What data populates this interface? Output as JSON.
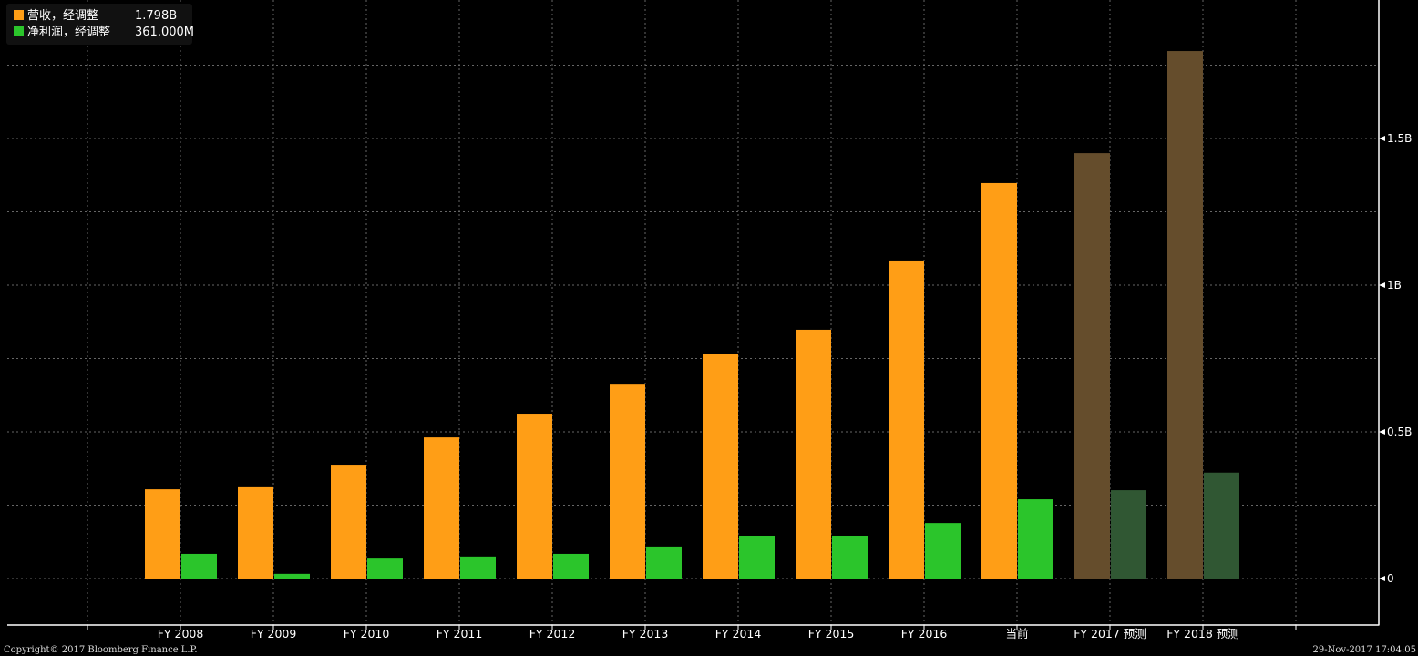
{
  "chart_data": {
    "type": "bar",
    "title": "",
    "xlabel": "",
    "ylabel": "",
    "ylim": [
      -0.16,
      1.97
    ],
    "y_ticks": [
      {
        "value": 0,
        "label": "0"
      },
      {
        "value": 0.5,
        "label": "0.5B"
      },
      {
        "value": 1,
        "label": "1B"
      },
      {
        "value": 1.5,
        "label": "1.5B"
      }
    ],
    "grid": true,
    "legend_position": "top-left",
    "categories": [
      "FY 2008",
      "FY 2009",
      "FY 2010",
      "FY 2011",
      "FY 2012",
      "FY 2013",
      "FY 2014",
      "FY 2015",
      "FY 2016",
      "当前",
      "FY 2017 预测",
      "FY 2018 预测"
    ],
    "forecast_flags": [
      false,
      false,
      false,
      false,
      false,
      false,
      false,
      false,
      false,
      false,
      true,
      true
    ],
    "series": [
      {
        "name": "营收，经调整",
        "legend_value": "1.798B",
        "color": "#ff9e16",
        "forecast_color": "#654d2c",
        "values": [
          0.304,
          0.314,
          0.388,
          0.481,
          0.562,
          0.661,
          0.764,
          0.848,
          1.084,
          1.348,
          1.45,
          1.798
        ]
      },
      {
        "name": "净利润，经调整",
        "legend_value": "361.000M",
        "color": "#2bc52b",
        "forecast_color": "#305733",
        "values": [
          0.084,
          0.016,
          0.071,
          0.075,
          0.084,
          0.109,
          0.146,
          0.146,
          0.189,
          0.27,
          0.301,
          0.361
        ]
      }
    ]
  },
  "footer": {
    "copyright": "Copyright© 2017 Bloomberg Finance L.P.",
    "timestamp": "29-Nov-2017 17:04:05"
  }
}
